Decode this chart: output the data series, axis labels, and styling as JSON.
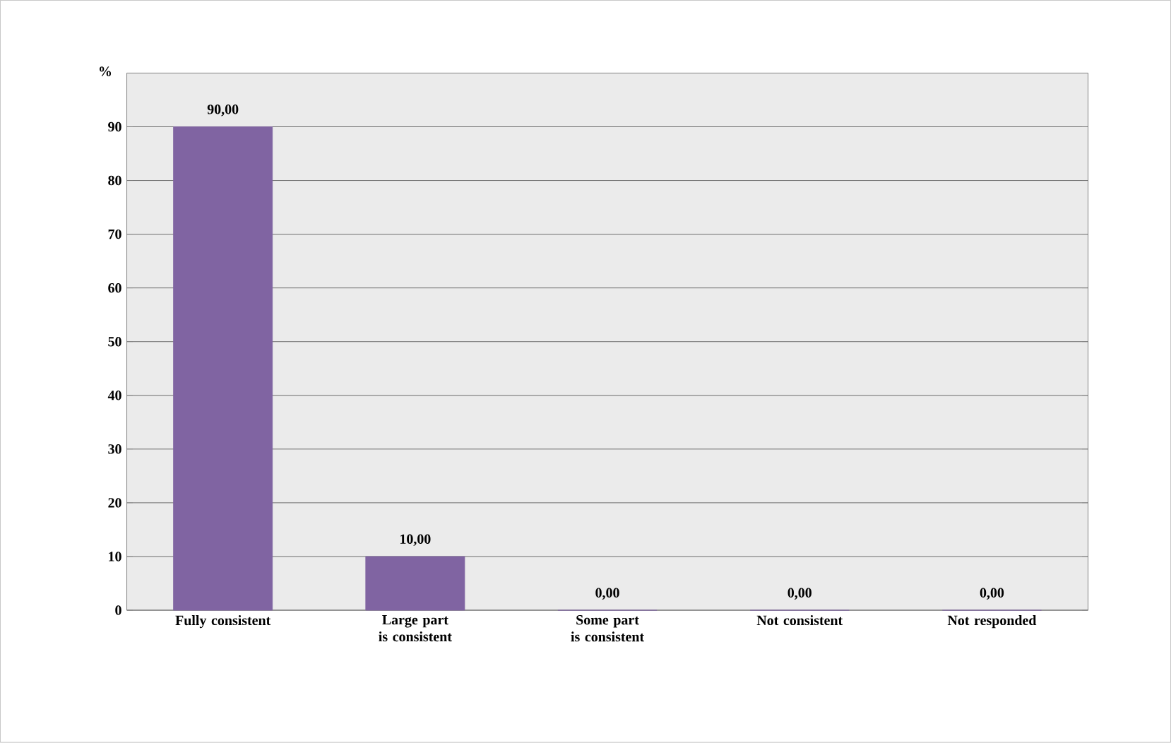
{
  "chart_data": {
    "type": "bar",
    "ylabel": "%",
    "categories": [
      "Fully consistent",
      "Large part is consistent",
      "Some part is consistent",
      "Not consistent",
      "Not responded"
    ],
    "values": [
      90,
      10,
      0,
      0,
      0
    ],
    "value_labels": [
      "90,00",
      "10,00",
      "0,00",
      "0,00",
      "0,00"
    ],
    "color": "#8064a2",
    "ylim": [
      0,
      100
    ],
    "yticks": [
      0,
      10,
      20,
      30,
      40,
      50,
      60,
      70,
      80,
      90
    ],
    "grid": "y"
  }
}
